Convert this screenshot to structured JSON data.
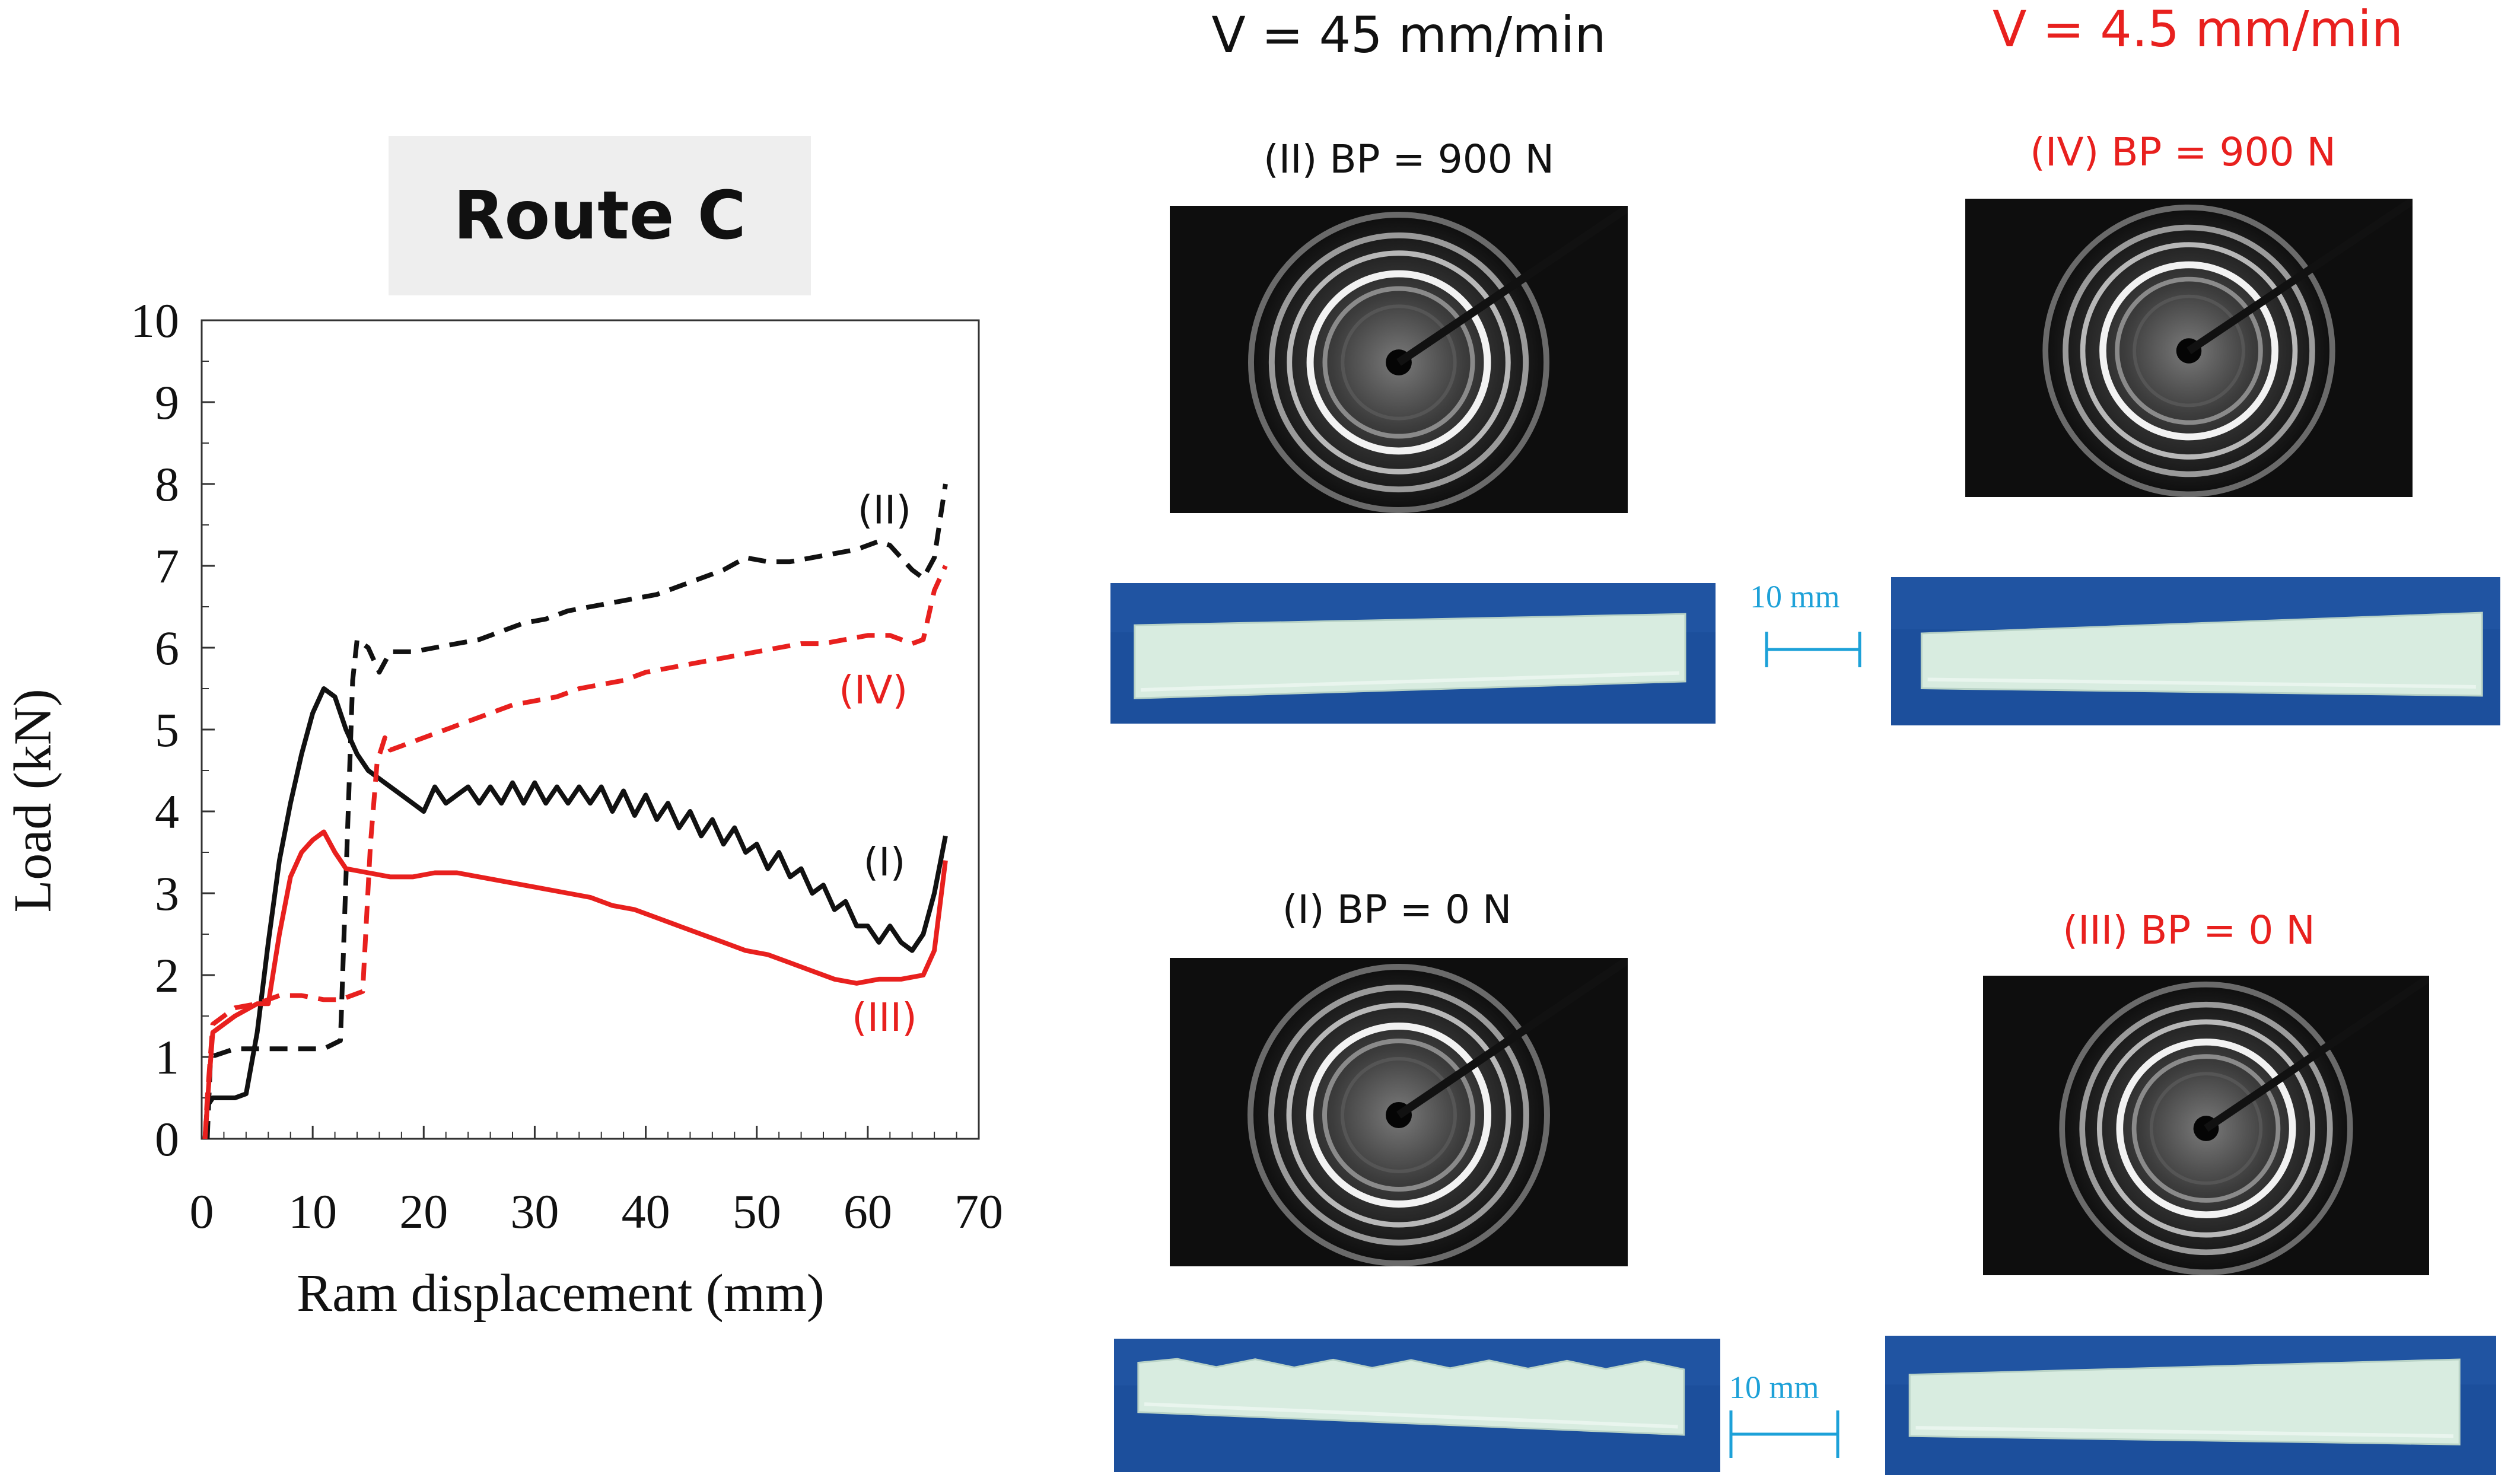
{
  "panel": {
    "route_label": "Route C"
  },
  "headers": {
    "fast": "V = 45 mm/min",
    "slow": "V = 4.5 mm/min"
  },
  "conditions": {
    "ii": "(II) BP = 900 N",
    "iv": "(IV) BP = 900 N",
    "i": "(I) BP = 0 N",
    "iii": "(III) BP = 0 N"
  },
  "scale_bars": {
    "top": "10 mm",
    "bottom": "10 mm"
  },
  "colors": {
    "black_series": "#111111",
    "red_series": "#e8201e",
    "scale_bar": "#1da1d8",
    "sample_background": "#1c4f9c",
    "sample_strip": "#d8ece0"
  },
  "chart_data": {
    "type": "line",
    "xlabel": "Ram displacement (mm)",
    "ylabel": "Load (kN)",
    "xlim": [
      0,
      70
    ],
    "ylim": [
      0,
      10
    ],
    "x_ticks": [
      "0",
      "10",
      "20",
      "30",
      "40",
      "50",
      "60",
      "70"
    ],
    "y_ticks": [
      "0",
      "1",
      "2",
      "3",
      "4",
      "5",
      "6",
      "7",
      "8",
      "9",
      "10"
    ],
    "grid": false,
    "series": [
      {
        "name": "(I)",
        "color": "#111111",
        "dash": "solid",
        "points": [
          [
            0.3,
            0
          ],
          [
            0.5,
            0.4
          ],
          [
            1,
            0.5
          ],
          [
            3,
            0.5
          ],
          [
            4,
            0.55
          ],
          [
            5,
            1.3
          ],
          [
            6,
            2.4
          ],
          [
            7,
            3.4
          ],
          [
            8,
            4.1
          ],
          [
            9,
            4.7
          ],
          [
            10,
            5.2
          ],
          [
            11,
            5.5
          ],
          [
            12,
            5.4
          ],
          [
            13,
            5.0
          ],
          [
            14,
            4.7
          ],
          [
            15,
            4.5
          ],
          [
            16,
            4.4
          ],
          [
            17,
            4.3
          ],
          [
            18,
            4.2
          ],
          [
            19,
            4.1
          ],
          [
            20,
            4.0
          ],
          [
            21,
            4.3
          ],
          [
            22,
            4.1
          ],
          [
            23,
            4.2
          ],
          [
            24,
            4.3
          ],
          [
            25,
            4.1
          ],
          [
            26,
            4.3
          ],
          [
            27,
            4.1
          ],
          [
            28,
            4.35
          ],
          [
            29,
            4.1
          ],
          [
            30,
            4.35
          ],
          [
            31,
            4.1
          ],
          [
            32,
            4.3
          ],
          [
            33,
            4.1
          ],
          [
            34,
            4.3
          ],
          [
            35,
            4.1
          ],
          [
            36,
            4.3
          ],
          [
            37,
            4.0
          ],
          [
            38,
            4.25
          ],
          [
            39,
            3.95
          ],
          [
            40,
            4.2
          ],
          [
            41,
            3.9
          ],
          [
            42,
            4.1
          ],
          [
            43,
            3.8
          ],
          [
            44,
            4.0
          ],
          [
            45,
            3.7
          ],
          [
            46,
            3.9
          ],
          [
            47,
            3.6
          ],
          [
            48,
            3.8
          ],
          [
            49,
            3.5
          ],
          [
            50,
            3.6
          ],
          [
            51,
            3.3
          ],
          [
            52,
            3.5
          ],
          [
            53,
            3.2
          ],
          [
            54,
            3.3
          ],
          [
            55,
            3.0
          ],
          [
            56,
            3.1
          ],
          [
            57,
            2.8
          ],
          [
            58,
            2.9
          ],
          [
            59,
            2.6
          ],
          [
            60,
            2.6
          ],
          [
            61,
            2.4
          ],
          [
            62,
            2.6
          ],
          [
            63,
            2.4
          ],
          [
            64,
            2.3
          ],
          [
            65,
            2.5
          ],
          [
            66,
            3.0
          ],
          [
            67,
            3.7
          ]
        ]
      },
      {
        "name": "(II)",
        "color": "#111111",
        "dash": "dashed",
        "points": [
          [
            0.5,
            0
          ],
          [
            0.8,
            1.0
          ],
          [
            3,
            1.1
          ],
          [
            6,
            1.1
          ],
          [
            9,
            1.1
          ],
          [
            11,
            1.1
          ],
          [
            12.5,
            1.2
          ],
          [
            13.2,
            4.0
          ],
          [
            13.6,
            5.6
          ],
          [
            14,
            6.1
          ],
          [
            15,
            6.0
          ],
          [
            16,
            5.7
          ],
          [
            17,
            5.95
          ],
          [
            19,
            5.95
          ],
          [
            21,
            6.0
          ],
          [
            23,
            6.05
          ],
          [
            25,
            6.1
          ],
          [
            27,
            6.2
          ],
          [
            29,
            6.3
          ],
          [
            31,
            6.35
          ],
          [
            33,
            6.45
          ],
          [
            35,
            6.5
          ],
          [
            37,
            6.55
          ],
          [
            39,
            6.6
          ],
          [
            41,
            6.65
          ],
          [
            43,
            6.75
          ],
          [
            45,
            6.85
          ],
          [
            47,
            6.95
          ],
          [
            49,
            7.1
          ],
          [
            51,
            7.05
          ],
          [
            53,
            7.05
          ],
          [
            55,
            7.1
          ],
          [
            57,
            7.15
          ],
          [
            59,
            7.2
          ],
          [
            61,
            7.3
          ],
          [
            62,
            7.25
          ],
          [
            63,
            7.1
          ],
          [
            64,
            6.95
          ],
          [
            65,
            6.85
          ],
          [
            66,
            7.1
          ],
          [
            67,
            8.0
          ]
        ]
      },
      {
        "name": "(III)",
        "color": "#e8201e",
        "dash": "solid",
        "points": [
          [
            0.3,
            0
          ],
          [
            0.6,
            0.6
          ],
          [
            1,
            1.3
          ],
          [
            3,
            1.5
          ],
          [
            5,
            1.65
          ],
          [
            6,
            1.65
          ],
          [
            7,
            2.5
          ],
          [
            8,
            3.2
          ],
          [
            9,
            3.5
          ],
          [
            10,
            3.65
          ],
          [
            11,
            3.75
          ],
          [
            12,
            3.5
          ],
          [
            13,
            3.3
          ],
          [
            15,
            3.25
          ],
          [
            17,
            3.2
          ],
          [
            19,
            3.2
          ],
          [
            21,
            3.25
          ],
          [
            23,
            3.25
          ],
          [
            25,
            3.2
          ],
          [
            27,
            3.15
          ],
          [
            29,
            3.1
          ],
          [
            31,
            3.05
          ],
          [
            33,
            3.0
          ],
          [
            35,
            2.95
          ],
          [
            37,
            2.85
          ],
          [
            39,
            2.8
          ],
          [
            41,
            2.7
          ],
          [
            43,
            2.6
          ],
          [
            45,
            2.5
          ],
          [
            47,
            2.4
          ],
          [
            49,
            2.3
          ],
          [
            51,
            2.25
          ],
          [
            53,
            2.15
          ],
          [
            55,
            2.05
          ],
          [
            57,
            1.95
          ],
          [
            59,
            1.9
          ],
          [
            61,
            1.95
          ],
          [
            63,
            1.95
          ],
          [
            65,
            2.0
          ],
          [
            66,
            2.3
          ],
          [
            67,
            3.4
          ]
        ]
      },
      {
        "name": "(IV)",
        "color": "#e8201e",
        "dash": "dashed",
        "points": [
          [
            0.3,
            0
          ],
          [
            0.5,
            0.5
          ],
          [
            1,
            1.4
          ],
          [
            3,
            1.6
          ],
          [
            5,
            1.65
          ],
          [
            7,
            1.75
          ],
          [
            9,
            1.75
          ],
          [
            11,
            1.7
          ],
          [
            12.5,
            1.7
          ],
          [
            14.5,
            1.8
          ],
          [
            15.2,
            3.6
          ],
          [
            15.8,
            4.6
          ],
          [
            16.5,
            4.9
          ],
          [
            17,
            4.75
          ],
          [
            18,
            4.8
          ],
          [
            20,
            4.9
          ],
          [
            22,
            5.0
          ],
          [
            24,
            5.1
          ],
          [
            26,
            5.2
          ],
          [
            28,
            5.3
          ],
          [
            30,
            5.35
          ],
          [
            32,
            5.4
          ],
          [
            34,
            5.5
          ],
          [
            36,
            5.55
          ],
          [
            38,
            5.6
          ],
          [
            40,
            5.7
          ],
          [
            42,
            5.75
          ],
          [
            44,
            5.8
          ],
          [
            46,
            5.85
          ],
          [
            48,
            5.9
          ],
          [
            50,
            5.95
          ],
          [
            52,
            6.0
          ],
          [
            54,
            6.05
          ],
          [
            56,
            6.05
          ],
          [
            58,
            6.1
          ],
          [
            60,
            6.15
          ],
          [
            62,
            6.15
          ],
          [
            64,
            6.05
          ],
          [
            65,
            6.1
          ],
          [
            66,
            6.7
          ],
          [
            67,
            7.0
          ]
        ]
      }
    ],
    "annotations": [
      {
        "text": "(II)",
        "x": 61.5,
        "y": 7.7,
        "color": "#111111"
      },
      {
        "text": "(IV)",
        "x": 60.5,
        "y": 5.5,
        "color": "#e8201e"
      },
      {
        "text": "(I)",
        "x": 61.5,
        "y": 3.4,
        "color": "#111111"
      },
      {
        "text": "(III)",
        "x": 61.5,
        "y": 1.5,
        "color": "#e8201e"
      }
    ]
  }
}
